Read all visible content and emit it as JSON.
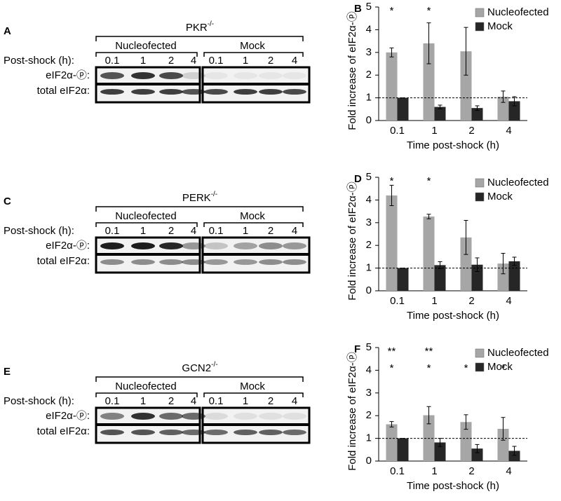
{
  "chart_data": [
    {
      "type": "bar",
      "panel": "B",
      "ylabel": "Fold increase of eIF2α-ⓟ",
      "xlabel": "Time post-shock (h)",
      "categories": [
        "0.1",
        "1",
        "2",
        "4"
      ],
      "series": [
        {
          "name": "Nucleofected",
          "color": "#a6a6a6",
          "values": [
            3.0,
            3.4,
            3.05,
            1.05
          ],
          "errors": [
            0.2,
            0.9,
            1.05,
            0.25
          ]
        },
        {
          "name": "Mock",
          "color": "#262626",
          "values": [
            1.0,
            0.6,
            0.55,
            0.85
          ],
          "errors": [
            0,
            0.08,
            0.1,
            0.2
          ]
        }
      ],
      "significance": [
        [
          "*",
          "*",
          null,
          null
        ]
      ],
      "reference_line": 1,
      "ylim": [
        0,
        5
      ],
      "yticks": [
        0,
        1,
        2,
        3,
        4,
        5
      ]
    },
    {
      "type": "bar",
      "panel": "D",
      "ylabel": "Fold increase of eIF2α-ⓟ",
      "xlabel": "Time post-shock (h)",
      "categories": [
        "0.1",
        "1",
        "2",
        "4"
      ],
      "series": [
        {
          "name": "Nucleofected",
          "color": "#a6a6a6",
          "values": [
            4.2,
            3.27,
            2.35,
            1.2
          ],
          "errors": [
            0.45,
            0.1,
            0.75,
            0.45
          ]
        },
        {
          "name": "Mock",
          "color": "#262626",
          "values": [
            1.0,
            1.13,
            1.15,
            1.3
          ],
          "errors": [
            0,
            0.15,
            0.3,
            0.18
          ]
        }
      ],
      "significance": [
        [
          "*",
          "*",
          null,
          null
        ]
      ],
      "reference_line": 1,
      "ylim": [
        0,
        5
      ],
      "yticks": [
        0,
        1,
        2,
        3,
        4,
        5
      ]
    },
    {
      "type": "bar",
      "panel": "F",
      "ylabel": "Fold increase of eIF2α-ⓟ",
      "xlabel": "Time post-shock (h)",
      "categories": [
        "0.1",
        "1",
        "2",
        "4"
      ],
      "series": [
        {
          "name": "Nucleofected",
          "color": "#a6a6a6",
          "values": [
            1.62,
            2.02,
            1.72,
            1.42
          ],
          "errors": [
            0.12,
            0.38,
            0.32,
            0.5
          ]
        },
        {
          "name": "Mock",
          "color": "#262626",
          "values": [
            1.0,
            0.82,
            0.55,
            0.45
          ],
          "errors": [
            0,
            0.18,
            0.18,
            0.2
          ]
        }
      ],
      "significance": [
        [
          "**",
          "**",
          null,
          null
        ],
        [
          "*",
          "*",
          "*",
          "*"
        ]
      ],
      "reference_line": 1,
      "ylim": [
        0,
        5
      ],
      "yticks": [
        0,
        1,
        2,
        3,
        4,
        5
      ]
    }
  ],
  "blots": [
    {
      "panel": "A",
      "genotype": "PKR",
      "genotype_sup": "-/-",
      "groups": [
        "Nucleofected",
        "Mock"
      ],
      "row_label": "Post-shock (h):",
      "times": [
        "0.1",
        "1",
        "2",
        "4",
        "0.1",
        "1",
        "2",
        "4"
      ],
      "lanes": [
        "eIF2α-ⓟ:",
        "total eIF2α:"
      ]
    },
    {
      "panel": "C",
      "genotype": "PERK",
      "genotype_sup": "-/-",
      "groups": [
        "Nucleofected",
        "Mock"
      ],
      "row_label": "Post-shock (h):",
      "times": [
        "0.1",
        "1",
        "2",
        "4",
        "0.1",
        "1",
        "2",
        "4"
      ],
      "lanes": [
        "eIF2α-ⓟ:",
        "total eIF2α:"
      ]
    },
    {
      "panel": "E",
      "genotype": "GCN2",
      "genotype_sup": "-/-",
      "groups": [
        "Nucleofected",
        "Mock"
      ],
      "row_label": "Post-shock (h):",
      "times": [
        "0.1",
        "1",
        "2",
        "4",
        "0.1",
        "1",
        "2",
        "4"
      ],
      "lanes": [
        "eIF2α-ⓟ:",
        "total eIF2α:"
      ]
    }
  ]
}
